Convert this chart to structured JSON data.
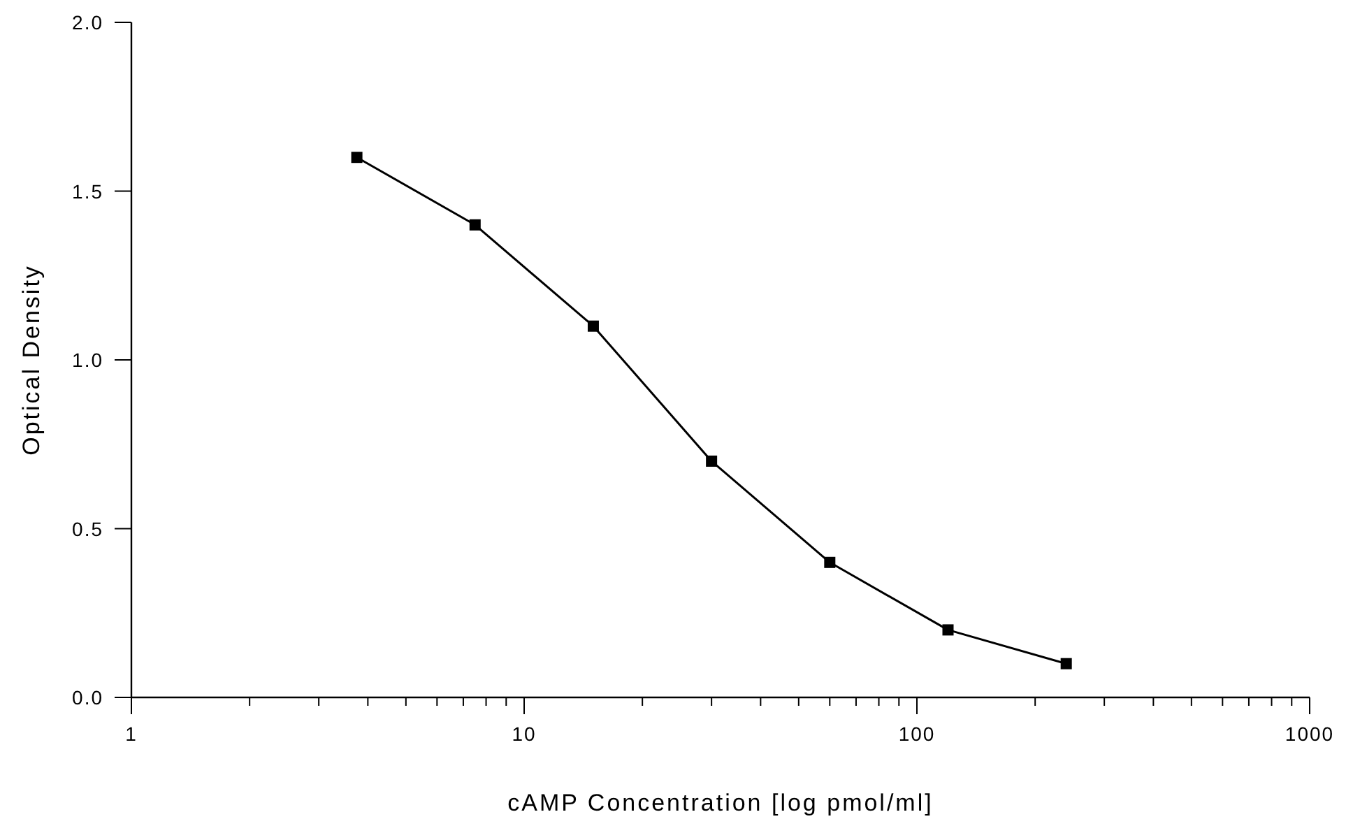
{
  "chart_data": {
    "type": "line",
    "xlabel": "cAMP Concentration [log pmol/ml]",
    "ylabel": "Optical Density",
    "x": [
      3.75,
      7.5,
      15,
      30,
      60,
      120,
      240
    ],
    "values": [
      1.6,
      1.4,
      1.1,
      0.7,
      0.4,
      0.2,
      0.1
    ],
    "color": "#000000",
    "marker": "square",
    "line_style": "solid",
    "log": "x",
    "grid": false,
    "xlim": [
      1,
      1000
    ],
    "xticks": [
      1,
      {
        "value": 2,
        "label": null
      },
      {
        "value": 3,
        "label": null
      },
      {
        "value": 4,
        "label": null
      },
      {
        "value": 5,
        "label": null
      },
      {
        "value": 6,
        "label": null
      },
      {
        "value": 7,
        "label": null
      },
      {
        "value": 8,
        "label": null
      },
      {
        "value": 9,
        "label": null
      },
      10,
      {
        "value": 20,
        "label": null
      },
      {
        "value": 30,
        "label": null
      },
      {
        "value": 40,
        "label": null
      },
      {
        "value": 50,
        "label": null
      },
      {
        "value": 60,
        "label": null
      },
      {
        "value": 70,
        "label": null
      },
      {
        "value": 80,
        "label": null
      },
      {
        "value": 90,
        "label": null
      },
      100,
      {
        "value": 200,
        "label": null
      },
      {
        "value": 300,
        "label": null
      },
      {
        "value": 400,
        "label": null
      },
      {
        "value": 500,
        "label": null
      },
      {
        "value": 600,
        "label": null
      },
      {
        "value": 700,
        "label": null
      },
      {
        "value": 800,
        "label": null
      },
      {
        "value": 900,
        "label": null
      },
      1000
    ],
    "ylim": [
      0,
      2
    ],
    "yticks": [
      {
        "value": 0,
        "label": "0.0"
      },
      0.5,
      {
        "value": 1,
        "label": "1.0"
      },
      1.5,
      {
        "value": 2,
        "label": "2.0"
      }
    ]
  }
}
